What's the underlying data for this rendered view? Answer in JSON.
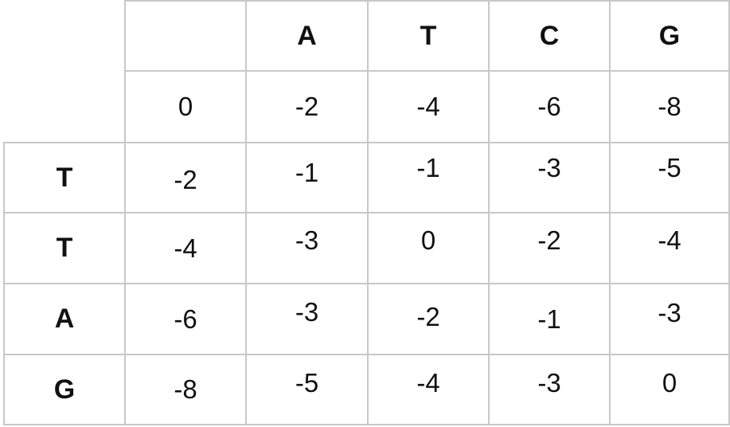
{
  "matrix": {
    "col_headers": [
      "A",
      "T",
      "C",
      "G"
    ],
    "row_headers": [
      "T",
      "T",
      "A",
      "G"
    ],
    "first_row": [
      "0",
      "-2",
      "-4",
      "-6",
      "-8"
    ],
    "rows": [
      [
        "-2",
        "-1",
        "-1",
        "-3",
        "-5"
      ],
      [
        "-4",
        "-3",
        "0",
        "-2",
        "-4"
      ],
      [
        "-6",
        "-3",
        "-2",
        "-1",
        "-3"
      ],
      [
        "-8",
        "-5",
        "-4",
        "-3",
        "0"
      ]
    ]
  }
}
